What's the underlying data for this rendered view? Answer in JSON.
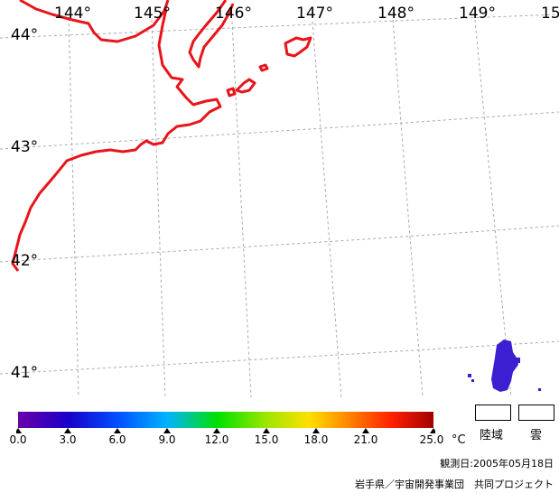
{
  "map": {
    "longitude_labels": [
      "144°",
      "145°",
      "146°",
      "147°",
      "148°",
      "149°",
      "15"
    ],
    "latitude_labels": [
      "44°",
      "43°",
      "42°",
      "41°"
    ],
    "coastline_color": "#e8141b",
    "grid_color": "#aaaaaa",
    "data_color": "#3b1fd1"
  },
  "colorbar": {
    "tick_labels": [
      "0.0",
      "3.0",
      "6.0",
      "9.0",
      "12.0",
      "15.0",
      "18.0",
      "21.0",
      "25.0"
    ],
    "unit": "°C",
    "colors": [
      "#6a00a8",
      "#1a00c8",
      "#0050ff",
      "#00b4ff",
      "#00e000",
      "#a0e600",
      "#ffe000",
      "#ff8000",
      "#ff2000",
      "#a00000"
    ]
  },
  "legend": {
    "land_label": "陸域",
    "cloud_label": "雲"
  },
  "footer": {
    "observation_date": "観測日:2005年05月18日",
    "credit": "岩手県／宇宙開発事業団　共同プロジェクト"
  }
}
